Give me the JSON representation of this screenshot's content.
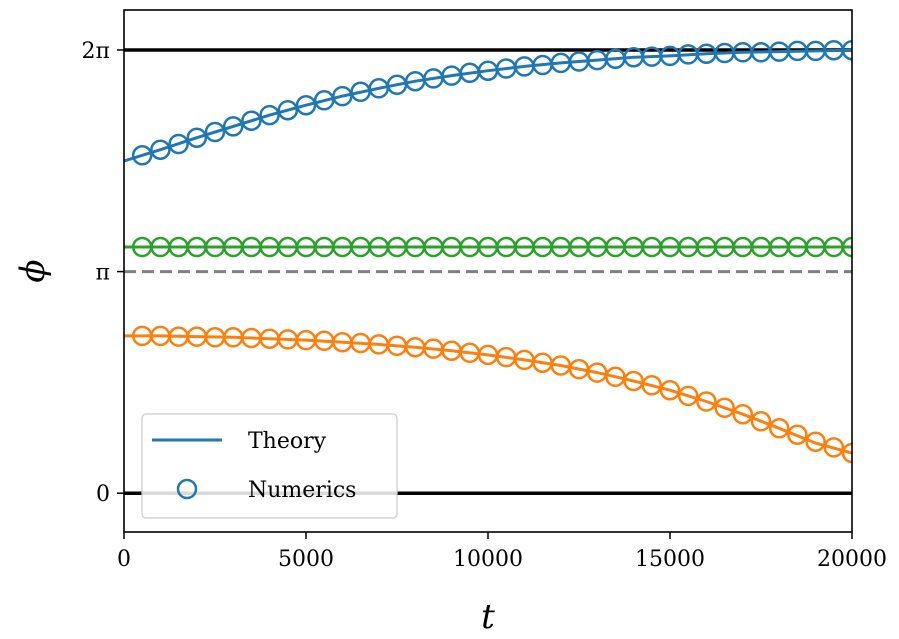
{
  "chart_data": {
    "type": "line",
    "xlabel": "t",
    "ylabel": "ϕ",
    "xlim": [
      0,
      20000
    ],
    "ylim": [
      -0.55,
      6.85
    ],
    "grid": false,
    "x_ticks": [
      {
        "value": 0,
        "label": "0"
      },
      {
        "value": 5000,
        "label": "5000"
      },
      {
        "value": 10000,
        "label": "10000"
      },
      {
        "value": 15000,
        "label": "15000"
      },
      {
        "value": 20000,
        "label": "20000"
      }
    ],
    "y_ticks": [
      {
        "value": 0,
        "label": "0"
      },
      {
        "value": 3.14159,
        "label": "π"
      },
      {
        "value": 6.28318,
        "label": "2π"
      }
    ],
    "reference_lines": [
      {
        "y": 0,
        "color": "#000000",
        "style": "solid"
      },
      {
        "y": 6.28318,
        "color": "#000000",
        "style": "solid"
      },
      {
        "y": 3.14159,
        "color": "#808080",
        "style": "dashed"
      }
    ],
    "series": [
      {
        "color": "#1f77b4",
        "theory": {
          "x": [
            0,
            1000,
            2000,
            3000,
            4000,
            5000,
            6000,
            7000,
            8000,
            9000,
            10000,
            11000,
            12000,
            13000,
            14000,
            15000,
            16000,
            17000,
            18000,
            19000,
            20000
          ],
          "y": [
            4.71,
            4.87,
            5.04,
            5.2,
            5.36,
            5.5,
            5.63,
            5.74,
            5.84,
            5.92,
            5.99,
            6.05,
            6.1,
            6.14,
            6.18,
            6.2,
            6.23,
            6.25,
            6.26,
            6.27,
            6.28
          ]
        },
        "numerics": {
          "x": [
            500,
            1000,
            1500,
            2000,
            2500,
            3000,
            3500,
            4000,
            4500,
            5000,
            5500,
            6000,
            6500,
            7000,
            7500,
            8000,
            8500,
            9000,
            9500,
            10000,
            10500,
            11000,
            11500,
            12000,
            12500,
            13000,
            13500,
            14000,
            14500,
            15000,
            15500,
            16000,
            16500,
            17000,
            17500,
            18000,
            18500,
            19000,
            19500,
            20000
          ],
          "y": [
            4.79,
            4.87,
            4.95,
            5.04,
            5.12,
            5.2,
            5.28,
            5.36,
            5.43,
            5.5,
            5.57,
            5.63,
            5.69,
            5.74,
            5.79,
            5.84,
            5.88,
            5.92,
            5.96,
            5.99,
            6.02,
            6.05,
            6.07,
            6.1,
            6.12,
            6.14,
            6.16,
            6.18,
            6.19,
            6.2,
            6.22,
            6.23,
            6.24,
            6.25,
            6.25,
            6.26,
            6.27,
            6.27,
            6.28,
            6.28
          ]
        }
      },
      {
        "color": "#2ca02c",
        "theory": {
          "x": [
            0,
            20000
          ],
          "y": [
            3.49,
            3.49
          ]
        },
        "numerics": {
          "x": [
            500,
            1000,
            1500,
            2000,
            2500,
            3000,
            3500,
            4000,
            4500,
            5000,
            5500,
            6000,
            6500,
            7000,
            7500,
            8000,
            8500,
            9000,
            9500,
            10000,
            10500,
            11000,
            11500,
            12000,
            12500,
            13000,
            13500,
            14000,
            14500,
            15000,
            15500,
            16000,
            16500,
            17000,
            17500,
            18000,
            18500,
            19000,
            19500,
            20000
          ],
          "y": [
            3.49,
            3.49,
            3.49,
            3.49,
            3.49,
            3.49,
            3.49,
            3.49,
            3.49,
            3.49,
            3.49,
            3.49,
            3.49,
            3.49,
            3.49,
            3.49,
            3.49,
            3.49,
            3.49,
            3.49,
            3.49,
            3.49,
            3.49,
            3.49,
            3.49,
            3.49,
            3.49,
            3.49,
            3.49,
            3.49,
            3.49,
            3.49,
            3.49,
            3.49,
            3.49,
            3.49,
            3.49,
            3.49,
            3.49,
            3.49
          ]
        }
      },
      {
        "color": "#ff7f0e",
        "theory": {
          "x": [
            0,
            1000,
            2000,
            3000,
            4000,
            5000,
            6000,
            7000,
            8000,
            9000,
            10000,
            11000,
            12000,
            13000,
            14000,
            15000,
            16000,
            17000,
            18000,
            19000,
            20000
          ],
          "y": [
            2.23,
            2.23,
            2.22,
            2.21,
            2.19,
            2.17,
            2.14,
            2.11,
            2.07,
            2.02,
            1.96,
            1.89,
            1.81,
            1.71,
            1.59,
            1.46,
            1.3,
            1.12,
            0.92,
            0.71,
            0.57
          ]
        },
        "numerics": {
          "x": [
            500,
            1000,
            1500,
            2000,
            2500,
            3000,
            3500,
            4000,
            4500,
            5000,
            5500,
            6000,
            6500,
            7000,
            7500,
            8000,
            8500,
            9000,
            9500,
            10000,
            10500,
            11000,
            11500,
            12000,
            12500,
            13000,
            13500,
            14000,
            14500,
            15000,
            15500,
            16000,
            16500,
            17000,
            17500,
            18000,
            18500,
            19000,
            19500,
            20000
          ],
          "y": [
            2.23,
            2.23,
            2.22,
            2.22,
            2.21,
            2.21,
            2.2,
            2.19,
            2.18,
            2.17,
            2.16,
            2.14,
            2.13,
            2.11,
            2.09,
            2.07,
            2.05,
            2.02,
            1.99,
            1.96,
            1.93,
            1.89,
            1.85,
            1.81,
            1.76,
            1.71,
            1.65,
            1.59,
            1.53,
            1.46,
            1.38,
            1.3,
            1.21,
            1.12,
            1.02,
            0.92,
            0.83,
            0.73,
            0.65,
            0.57
          ]
        }
      }
    ],
    "legend": {
      "placement": "lower-left",
      "entries": [
        {
          "label": "Theory",
          "marker": "line",
          "color": "#1f77b4"
        },
        {
          "label": "Numerics",
          "marker": "circle",
          "color": "#1f77b4"
        }
      ]
    }
  }
}
